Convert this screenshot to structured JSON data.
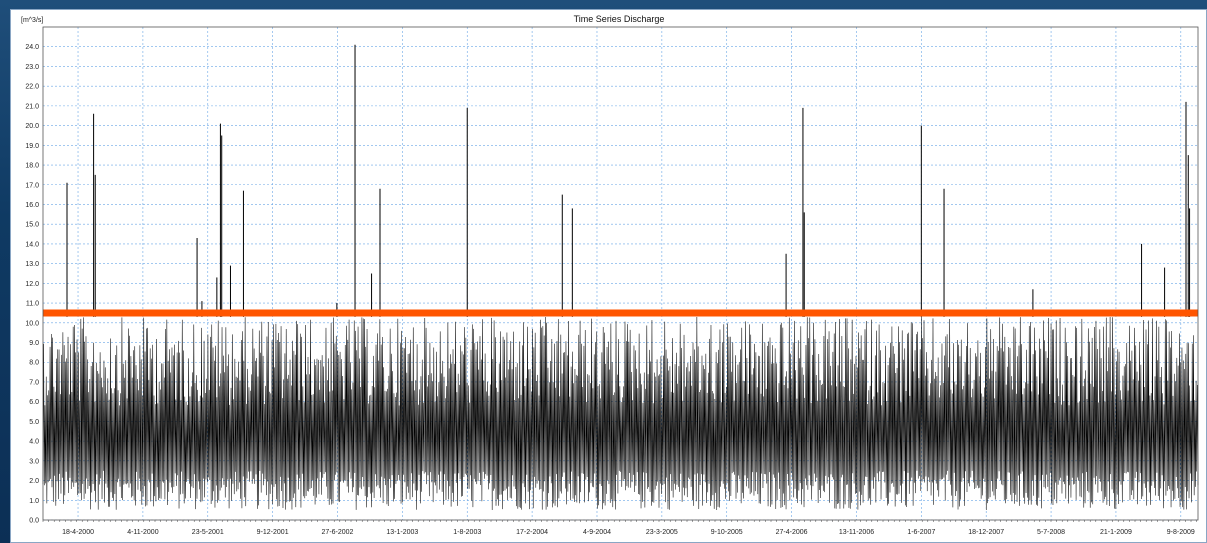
{
  "chart_data": {
    "type": "line",
    "title": "Time Series Discharge",
    "ylabel": "[m^3/s]",
    "xlabel": "",
    "ylim": [
      0,
      25
    ],
    "y_ticks": [
      "0.0",
      "1.0",
      "2.0",
      "3.0",
      "4.0",
      "5.0",
      "6.0",
      "7.0",
      "8.0",
      "9.0",
      "10.0",
      "11.0",
      "12.0",
      "13.0",
      "14.0",
      "15.0",
      "16.0",
      "17.0",
      "18.0",
      "19.0",
      "20.0",
      "21.0",
      "22.0",
      "23.0",
      "24.0"
    ],
    "x_tick_labels": [
      "18-4-2000",
      "4-11-2000",
      "23-5-2001",
      "9-12-2001",
      "27-6-2002",
      "13-1-2003",
      "1-8-2003",
      "17-2-2004",
      "4-9-2004",
      "23-3-2005",
      "9-10-2005",
      "27-4-2006",
      "13-11-2006",
      "1-6-2007",
      "18-12-2007",
      "5-7-2008",
      "21-1-2009",
      "9-8-2009"
    ],
    "x_range": [
      "2000-01-01",
      "2009-10-01"
    ],
    "grid": true,
    "series": [
      {
        "color": "#000000",
        "baseline_band": [
          0.5,
          10.3
        ],
        "peaks": [
          {
            "x": "2000-03-15",
            "y": 17.1
          },
          {
            "x": "2000-06-05",
            "y": 20.6
          },
          {
            "x": "2000-06-10",
            "y": 17.5
          },
          {
            "x": "2001-04-20",
            "y": 14.3
          },
          {
            "x": "2001-05-05",
            "y": 11.1
          },
          {
            "x": "2001-06-20",
            "y": 12.3
          },
          {
            "x": "2001-07-01",
            "y": 20.1
          },
          {
            "x": "2001-07-05",
            "y": 19.5
          },
          {
            "x": "2001-08-01",
            "y": 12.9
          },
          {
            "x": "2001-09-10",
            "y": 16.7
          },
          {
            "x": "2002-06-25",
            "y": 11.0
          },
          {
            "x": "2002-08-20",
            "y": 24.1
          },
          {
            "x": "2002-10-10",
            "y": 12.5
          },
          {
            "x": "2002-11-05",
            "y": 16.8
          },
          {
            "x": "2003-08-01",
            "y": 20.9
          },
          {
            "x": "2004-05-20",
            "y": 16.5
          },
          {
            "x": "2004-06-20",
            "y": 15.8
          },
          {
            "x": "2006-04-10",
            "y": 13.5
          },
          {
            "x": "2006-06-01",
            "y": 20.9
          },
          {
            "x": "2006-06-05",
            "y": 15.6
          },
          {
            "x": "2007-06-01",
            "y": 20.0
          },
          {
            "x": "2007-08-10",
            "y": 16.8
          },
          {
            "x": "2008-05-10",
            "y": 11.7
          },
          {
            "x": "2009-04-10",
            "y": 14.0
          },
          {
            "x": "2009-06-20",
            "y": 12.8
          },
          {
            "x": "2009-08-25",
            "y": 21.2
          },
          {
            "x": "2009-09-01",
            "y": 18.5
          },
          {
            "x": "2009-09-05",
            "y": 15.8
          }
        ]
      }
    ],
    "threshold_line": {
      "y": 10.5,
      "color": "#ff5500"
    }
  }
}
